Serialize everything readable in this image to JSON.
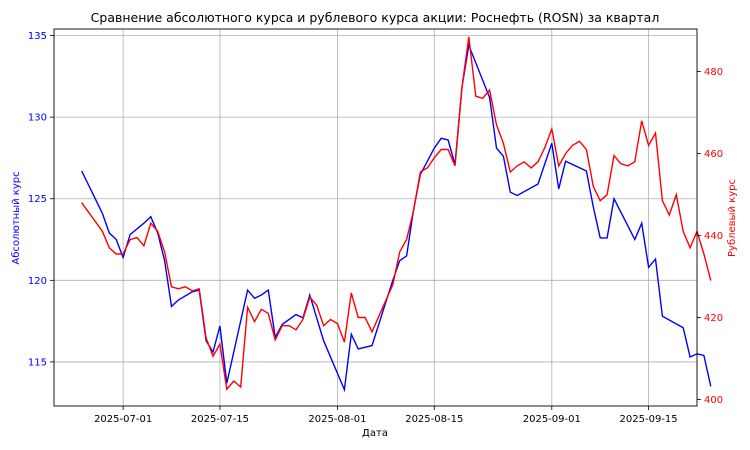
{
  "chart_data": {
    "type": "line",
    "title": "Сравнение абсолютного курса и рублевого курса акции: Роснефть (ROSN) за квартал",
    "xlabel": "Дата",
    "ylabel_left": "Абсолютный курс",
    "ylabel_right": "Рублевый курс",
    "grid": true,
    "x_range": [
      "2025-06-21",
      "2025-09-22"
    ],
    "y_left_range": [
      112.3,
      135.4
    ],
    "y_right_range": [
      398.4,
      490.4
    ],
    "x_ticks": [
      "2025-07-01",
      "2025-07-15",
      "2025-08-01",
      "2025-08-15",
      "2025-09-01",
      "2025-09-15"
    ],
    "y_left_ticks": [
      115,
      120,
      125,
      130,
      135
    ],
    "y_right_ticks": [
      400,
      420,
      440,
      460,
      480
    ],
    "colors": {
      "left": "#0000ff",
      "right": "#ff0000"
    },
    "series": [
      {
        "axis": "left",
        "color": "#0000ff",
        "points": [
          [
            "2025-06-25",
            126.7
          ],
          [
            "2025-06-28",
            124.1
          ],
          [
            "2025-06-29",
            122.9
          ],
          [
            "2025-06-30",
            122.5
          ],
          [
            "2025-07-01",
            121.4
          ],
          [
            "2025-07-02",
            122.8
          ],
          [
            "2025-07-04",
            123.5
          ],
          [
            "2025-07-05",
            123.9
          ],
          [
            "2025-07-06",
            122.9
          ],
          [
            "2025-07-07",
            121.2
          ],
          [
            "2025-07-08",
            118.4
          ],
          [
            "2025-07-09",
            118.8
          ],
          [
            "2025-07-11",
            119.3
          ],
          [
            "2025-07-12",
            119.4
          ],
          [
            "2025-07-13",
            116.3
          ],
          [
            "2025-07-14",
            115.6
          ],
          [
            "2025-07-15",
            117.2
          ],
          [
            "2025-07-16",
            113.7
          ],
          [
            "2025-07-19",
            119.4
          ],
          [
            "2025-07-20",
            118.9
          ],
          [
            "2025-07-21",
            119.1
          ],
          [
            "2025-07-22",
            119.4
          ],
          [
            "2025-07-23",
            116.5
          ],
          [
            "2025-07-24",
            117.3
          ],
          [
            "2025-07-26",
            117.9
          ],
          [
            "2025-07-27",
            117.7
          ],
          [
            "2025-07-28",
            119.1
          ],
          [
            "2025-07-29",
            117.7
          ],
          [
            "2025-07-30",
            116.3
          ],
          [
            "2025-08-02",
            113.3
          ],
          [
            "2025-08-03",
            116.7
          ],
          [
            "2025-08-04",
            115.8
          ],
          [
            "2025-08-06",
            116.0
          ],
          [
            "2025-08-09",
            120.0
          ],
          [
            "2025-08-10",
            121.2
          ],
          [
            "2025-08-11",
            121.5
          ],
          [
            "2025-08-12",
            124.3
          ],
          [
            "2025-08-13",
            126.5
          ],
          [
            "2025-08-14",
            127.3
          ],
          [
            "2025-08-15",
            128.1
          ],
          [
            "2025-08-16",
            128.7
          ],
          [
            "2025-08-17",
            128.6
          ],
          [
            "2025-08-18",
            127.1
          ],
          [
            "2025-08-19",
            131.8
          ],
          [
            "2025-08-20",
            134.4
          ],
          [
            "2025-08-23",
            131.2
          ],
          [
            "2025-08-24",
            128.1
          ],
          [
            "2025-08-25",
            127.6
          ],
          [
            "2025-08-26",
            125.4
          ],
          [
            "2025-08-27",
            125.2
          ],
          [
            "2025-08-30",
            125.9
          ],
          [
            "2025-09-01",
            128.4
          ],
          [
            "2025-09-02",
            125.6
          ],
          [
            "2025-09-03",
            127.3
          ],
          [
            "2025-09-06",
            126.7
          ],
          [
            "2025-09-07",
            124.5
          ],
          [
            "2025-09-08",
            122.6
          ],
          [
            "2025-09-09",
            122.6
          ],
          [
            "2025-09-10",
            125.0
          ],
          [
            "2025-09-13",
            122.5
          ],
          [
            "2025-09-14",
            123.5
          ],
          [
            "2025-09-15",
            120.8
          ],
          [
            "2025-09-16",
            121.3
          ],
          [
            "2025-09-17",
            117.8
          ],
          [
            "2025-09-20",
            117.1
          ],
          [
            "2025-09-21",
            115.3
          ],
          [
            "2025-09-22",
            115.5
          ],
          [
            "2025-09-23",
            115.4
          ],
          [
            "2025-09-24",
            113.5
          ]
        ]
      },
      {
        "axis": "right",
        "color": "#ff0000",
        "points": [
          [
            "2025-06-25",
            448
          ],
          [
            "2025-06-28",
            441
          ],
          [
            "2025-06-29",
            437
          ],
          [
            "2025-06-30",
            435.5
          ],
          [
            "2025-07-01",
            435.5
          ],
          [
            "2025-07-02",
            439
          ],
          [
            "2025-07-03",
            439.5
          ],
          [
            "2025-07-04",
            437.5
          ],
          [
            "2025-07-05",
            443
          ],
          [
            "2025-07-06",
            441
          ],
          [
            "2025-07-07",
            436
          ],
          [
            "2025-07-08",
            427.5
          ],
          [
            "2025-07-09",
            427
          ],
          [
            "2025-07-10",
            427.5
          ],
          [
            "2025-07-11",
            426.5
          ],
          [
            "2025-07-12",
            427
          ],
          [
            "2025-07-13",
            415
          ],
          [
            "2025-07-14",
            410.5
          ],
          [
            "2025-07-15",
            413.5
          ],
          [
            "2025-07-16",
            402.5
          ],
          [
            "2025-07-17",
            404.5
          ],
          [
            "2025-07-18",
            403
          ],
          [
            "2025-07-19",
            422.5
          ],
          [
            "2025-07-20",
            419
          ],
          [
            "2025-07-21",
            422
          ],
          [
            "2025-07-22",
            421
          ],
          [
            "2025-07-23",
            414.5
          ],
          [
            "2025-07-24",
            418
          ],
          [
            "2025-07-25",
            418
          ],
          [
            "2025-07-26",
            417
          ],
          [
            "2025-07-27",
            419.5
          ],
          [
            "2025-07-28",
            425
          ],
          [
            "2025-07-29",
            423
          ],
          [
            "2025-07-30",
            418
          ],
          [
            "2025-07-31",
            419.5
          ],
          [
            "2025-08-01",
            418.5
          ],
          [
            "2025-08-02",
            414
          ],
          [
            "2025-08-03",
            426
          ],
          [
            "2025-08-04",
            420
          ],
          [
            "2025-08-05",
            420
          ],
          [
            "2025-08-06",
            416.5
          ],
          [
            "2025-08-09",
            428
          ],
          [
            "2025-08-10",
            436
          ],
          [
            "2025-08-11",
            439
          ],
          [
            "2025-08-12",
            446
          ],
          [
            "2025-08-13",
            455.5
          ],
          [
            "2025-08-14",
            456.5
          ],
          [
            "2025-08-15",
            459
          ],
          [
            "2025-08-16",
            461
          ],
          [
            "2025-08-17",
            461
          ],
          [
            "2025-08-18",
            457
          ],
          [
            "2025-08-19",
            476
          ],
          [
            "2025-08-20",
            488.5
          ],
          [
            "2025-08-21",
            474
          ],
          [
            "2025-08-22",
            473.5
          ],
          [
            "2025-08-23",
            475.5
          ],
          [
            "2025-08-24",
            467
          ],
          [
            "2025-08-25",
            462.5
          ],
          [
            "2025-08-26",
            455.5
          ],
          [
            "2025-08-27",
            457
          ],
          [
            "2025-08-28",
            458
          ],
          [
            "2025-08-29",
            456.5
          ],
          [
            "2025-08-30",
            458
          ],
          [
            "2025-08-31",
            461.5
          ],
          [
            "2025-09-01",
            466
          ],
          [
            "2025-09-02",
            457
          ],
          [
            "2025-09-03",
            460
          ],
          [
            "2025-09-04",
            462
          ],
          [
            "2025-09-05",
            463
          ],
          [
            "2025-09-06",
            461
          ],
          [
            "2025-09-07",
            452
          ],
          [
            "2025-09-08",
            448.5
          ],
          [
            "2025-09-09",
            450
          ],
          [
            "2025-09-10",
            459.5
          ],
          [
            "2025-09-11",
            457.5
          ],
          [
            "2025-09-12",
            457
          ],
          [
            "2025-09-13",
            458
          ],
          [
            "2025-09-14",
            468
          ],
          [
            "2025-09-15",
            462
          ],
          [
            "2025-09-16",
            465
          ],
          [
            "2025-09-17",
            448.5
          ],
          [
            "2025-09-18",
            445
          ],
          [
            "2025-09-19",
            450
          ],
          [
            "2025-09-20",
            441
          ],
          [
            "2025-09-21",
            437
          ],
          [
            "2025-09-22",
            441
          ],
          [
            "2025-09-23",
            435.5
          ],
          [
            "2025-09-24",
            429
          ]
        ]
      }
    ]
  }
}
